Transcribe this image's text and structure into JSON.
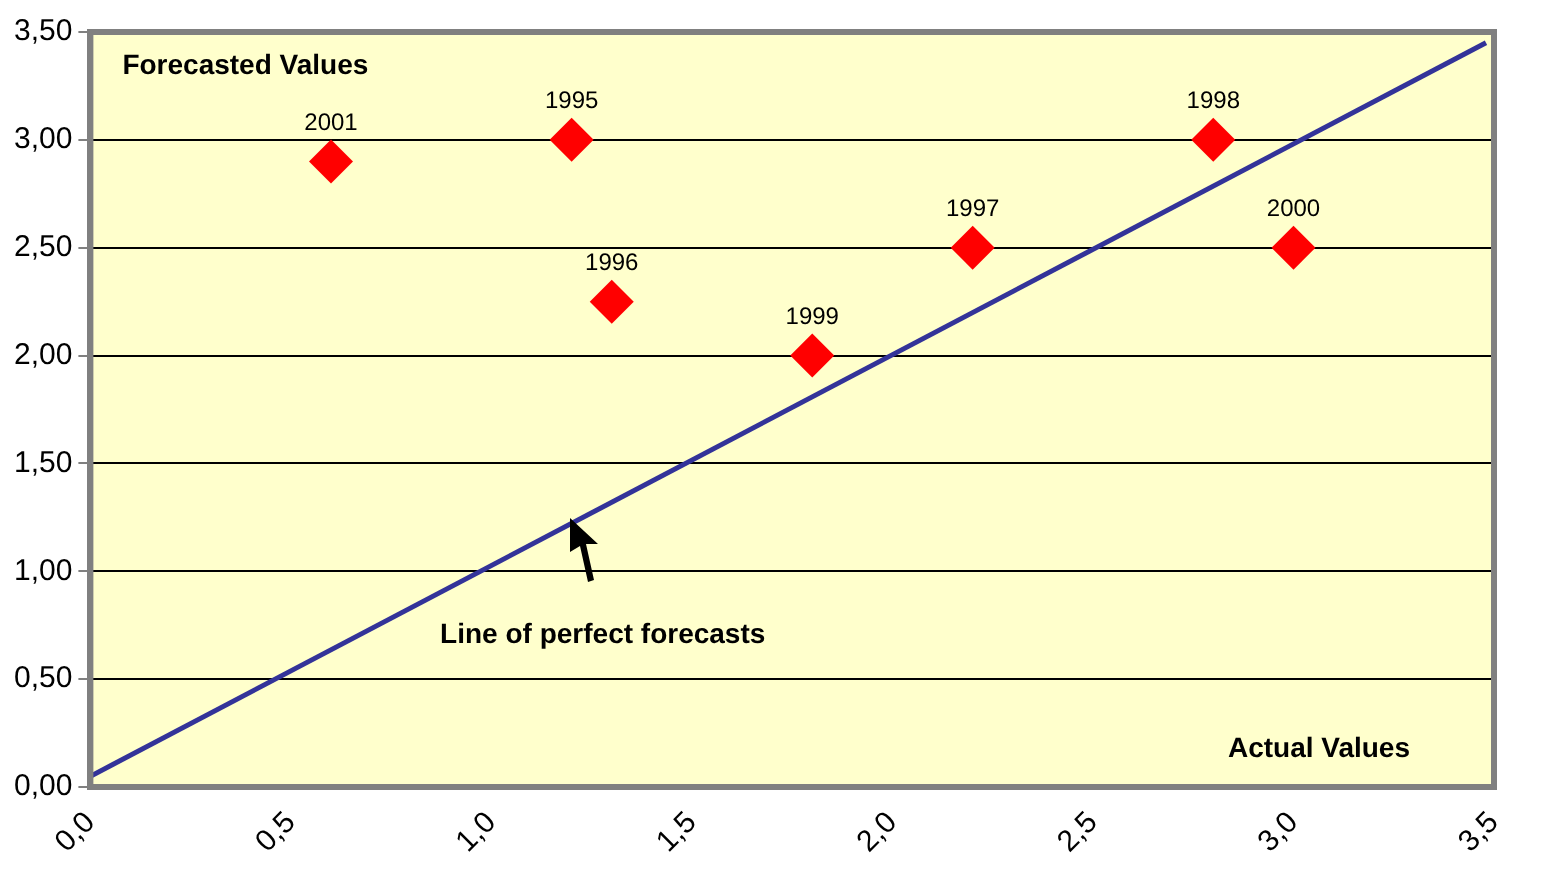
{
  "chart_data": {
    "type": "scatter",
    "xlabel": "Actual Values",
    "ylabel": "Forecasted Values",
    "xlim": [
      0,
      3.5
    ],
    "ylim": [
      0,
      3.5
    ],
    "xticks": [
      {
        "value": 0,
        "label": "0,0"
      },
      {
        "value": 0.5,
        "label": "0,5"
      },
      {
        "value": 1,
        "label": "1,0"
      },
      {
        "value": 1.5,
        "label": "1,5"
      },
      {
        "value": 2,
        "label": "2,0"
      },
      {
        "value": 2.5,
        "label": "2,5"
      },
      {
        "value": 3,
        "label": "3,0"
      },
      {
        "value": 3.5,
        "label": "3,5"
      }
    ],
    "yticks": [
      {
        "value": 0,
        "label": "0,00"
      },
      {
        "value": 0.5,
        "label": "0,50"
      },
      {
        "value": 1,
        "label": "1,00"
      },
      {
        "value": 1.5,
        "label": "1,50"
      },
      {
        "value": 2,
        "label": "2,00"
      },
      {
        "value": 2.5,
        "label": "2,50"
      },
      {
        "value": 3,
        "label": "3,00"
      },
      {
        "value": 3.5,
        "label": "3,50"
      }
    ],
    "grid": "y",
    "legend": false,
    "marker": "diamond",
    "series": [
      {
        "name": "2001",
        "color": "#ff0000",
        "x": [
          0.6
        ],
        "values": [
          2.9
        ]
      },
      {
        "name": "1995",
        "color": "#ff0000",
        "x": [
          1.2
        ],
        "values": [
          3.0
        ]
      },
      {
        "name": "1996",
        "color": "#ff0000",
        "x": [
          1.3
        ],
        "values": [
          2.25
        ]
      },
      {
        "name": "1999",
        "color": "#ff0000",
        "x": [
          1.8
        ],
        "values": [
          2.0
        ]
      },
      {
        "name": "1997",
        "color": "#ff0000",
        "x": [
          2.2
        ],
        "values": [
          2.5
        ]
      },
      {
        "name": "1998",
        "color": "#ff0000",
        "x": [
          2.8
        ],
        "values": [
          3.0
        ]
      },
      {
        "name": "2000",
        "color": "#ff0000",
        "x": [
          3.0
        ],
        "values": [
          2.5
        ]
      },
      {
        "type": "line",
        "color": "#333399",
        "marker": "none",
        "x": [
          0,
          3.48
        ],
        "values": [
          0.05,
          3.45
        ]
      }
    ],
    "annotations": [
      "Line of perfect forecasts"
    ]
  }
}
